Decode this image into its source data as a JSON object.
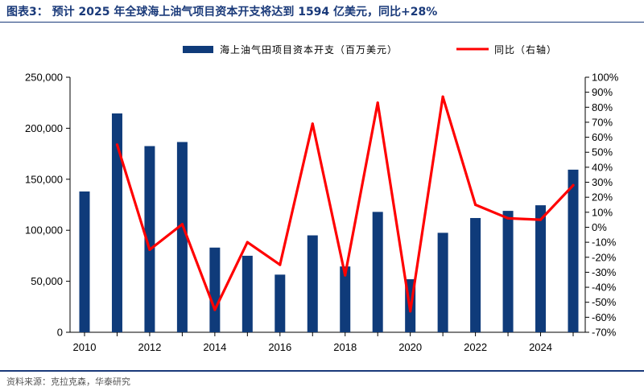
{
  "header": {
    "title": "图表3：   预计 2025 年全球海上油气项目资本开支将达到 1594 亿美元，同比+28%"
  },
  "footer": {
    "source": "资料来源：克拉克森，华泰研究"
  },
  "chart_data": {
    "type": "bar",
    "title": "",
    "x": [
      2010,
      2011,
      2012,
      2013,
      2014,
      2015,
      2016,
      2017,
      2018,
      2019,
      2020,
      2021,
      2022,
      2023,
      2024,
      2025
    ],
    "x_tick_labels": [
      "2010",
      "2012",
      "2014",
      "2016",
      "2018",
      "2020",
      "2022",
      "2024"
    ],
    "series": [
      {
        "name": "海上油气田项目资本开支（百万美元）",
        "type": "bar",
        "axis": "left",
        "color": "#0f3b7a",
        "values": [
          138000,
          214500,
          182500,
          186500,
          83000,
          75000,
          56500,
          95000,
          64500,
          118000,
          52000,
          97500,
          112000,
          119000,
          124500,
          159400
        ]
      },
      {
        "name": "同比（右轴）",
        "type": "line",
        "axis": "right",
        "color": "#ff0000",
        "values": [
          null,
          55,
          -15,
          2,
          -55,
          -10,
          -25,
          69,
          -32,
          83,
          -56,
          87,
          15,
          6,
          5,
          28
        ]
      }
    ],
    "y_left": {
      "lim": [
        0,
        250000
      ],
      "ticks": [
        0,
        50000,
        100000,
        150000,
        200000,
        250000
      ],
      "tick_labels": [
        "0",
        "50,000",
        "100,000",
        "150,000",
        "200,000",
        "250,000"
      ]
    },
    "y_right": {
      "lim": [
        -70,
        100
      ],
      "ticks": [
        -70,
        -60,
        -50,
        -40,
        -30,
        -20,
        -10,
        0,
        10,
        20,
        30,
        40,
        50,
        60,
        70,
        80,
        90,
        100
      ],
      "tick_labels": [
        "-70%",
        "-60%",
        "-50%",
        "-40%",
        "-30%",
        "-20%",
        "-10%",
        "0%",
        "10%",
        "20%",
        "30%",
        "40%",
        "50%",
        "60%",
        "70%",
        "80%",
        "90%",
        "100%"
      ]
    },
    "legend_position": "top-center",
    "grid": false
  }
}
